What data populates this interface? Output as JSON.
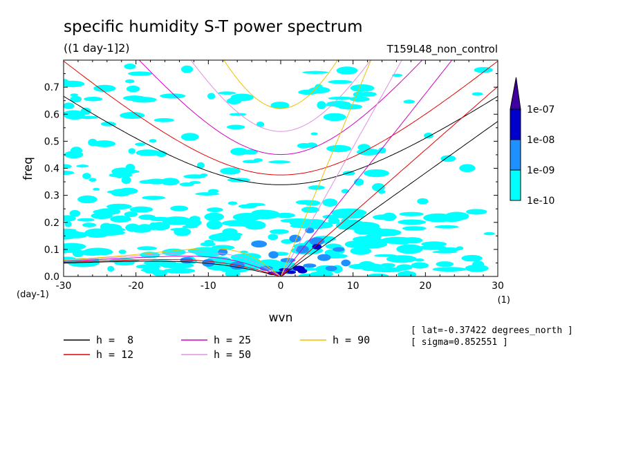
{
  "chart_data": {
    "type": "contour",
    "title": "specific humidity S-T power spectrum",
    "subtitle": "((1 day-1]2)",
    "run_label": "T159L48_non_control",
    "xlabel": "wvn",
    "ylabel": "freq",
    "x_unit": "(1)",
    "y_unit": "(day-1)",
    "xlim": [
      -30,
      30
    ],
    "ylim": [
      0,
      0.8
    ],
    "x_ticks": [
      "-30",
      "-20",
      "-10",
      "0",
      "10",
      "20",
      "30"
    ],
    "y_ticks": [
      "0.0",
      "0.1",
      "0.2",
      "0.3",
      "0.4",
      "0.5",
      "0.6",
      "0.7"
    ],
    "colorbar": {
      "levels": [
        "1e-10",
        "1e-09",
        "1e-08",
        "1e-07"
      ],
      "colors": [
        "#00ffff",
        "#1e90ff",
        "#0000cd",
        "#3f00a0"
      ]
    },
    "dispersion_curves": [
      {
        "name": "h =  8",
        "h": 8,
        "color": "#000000"
      },
      {
        "name": "h = 12",
        "h": 12,
        "color": "#e00000"
      },
      {
        "name": "h = 25",
        "h": 25,
        "color": "#d000c0"
      },
      {
        "name": "h = 50",
        "h": 50,
        "color": "#e090e0"
      },
      {
        "name": "h = 90",
        "h": 90,
        "color": "#f0c000"
      }
    ],
    "info_lines": [
      "[ lat=-0.37422 degrees_north ]",
      "[ sigma=0.852551 ]"
    ]
  }
}
